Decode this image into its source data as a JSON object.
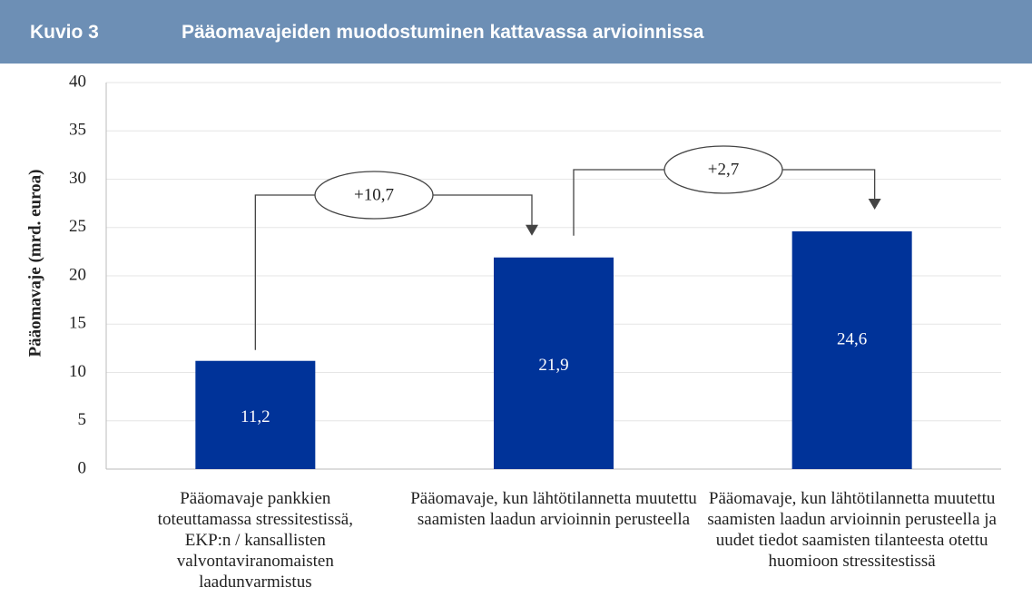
{
  "header": {
    "label": "Kuvio 3",
    "title": "Pääomavajeiden muodostuminen kattavassa arvioinnissa"
  },
  "chart_data": {
    "type": "bar",
    "ylabel": "Pääomavaje (mrd. euroa)",
    "categories": [
      "Pääomavaje pankkien toteuttamassa stressitestissä, EKP:n / kansallisten valvontaviranomaisten laadunvarmistus",
      "Pääomavaje, kun lähtötilannetta muutettu saamisten laadun arvioinnin perusteella",
      "Pääomavaje, kun lähtötilannetta muutettu saamisten laadun arvioinnin perusteella ja uudet tiedot saamisten tilanteesta otettu huomioon stressitestissä"
    ],
    "values": [
      11.2,
      21.9,
      24.6
    ],
    "value_labels": [
      "11,2",
      "21,9",
      "24,6"
    ],
    "color": "#003399",
    "ylim": [
      0,
      40
    ],
    "yticks": [
      0,
      5,
      10,
      15,
      20,
      25,
      30,
      35,
      40
    ],
    "grid": true,
    "annotations": [
      "+10,7",
      "+2,7"
    ]
  }
}
